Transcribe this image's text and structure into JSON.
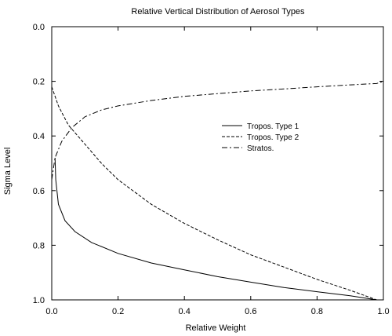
{
  "chart_data": {
    "type": "line",
    "title": "Relative Vertical Distribution of Aerosol Types",
    "xlabel": "Relative Weight",
    "ylabel": "Sigma Level",
    "xlim": [
      0.0,
      1.0
    ],
    "ylim": [
      1.0,
      0.0
    ],
    "y_inverted": true,
    "grid": false,
    "legend_position": "center-right",
    "x_ticks": [
      "0.0",
      "0.2",
      "0.4",
      "0.6",
      "0.8",
      "1.0"
    ],
    "y_ticks": [
      "0.0",
      "0.2",
      "0.4",
      "0.6",
      "0.8",
      "1.0"
    ],
    "series": [
      {
        "name": "Tropos. Type 1",
        "dash": "solid",
        "points": [
          [
            0.01,
            0.48
          ],
          [
            0.012,
            0.56
          ],
          [
            0.02,
            0.65
          ],
          [
            0.04,
            0.71
          ],
          [
            0.07,
            0.75
          ],
          [
            0.12,
            0.79
          ],
          [
            0.2,
            0.83
          ],
          [
            0.3,
            0.865
          ],
          [
            0.4,
            0.89
          ],
          [
            0.5,
            0.915
          ],
          [
            0.6,
            0.935
          ],
          [
            0.7,
            0.955
          ],
          [
            0.8,
            0.97
          ],
          [
            0.9,
            0.985
          ],
          [
            0.98,
            1.0
          ]
        ]
      },
      {
        "name": "Tropos. Type 2",
        "dash": "dashed",
        "points": [
          [
            0.0,
            0.22
          ],
          [
            0.02,
            0.29
          ],
          [
            0.05,
            0.36
          ],
          [
            0.1,
            0.43
          ],
          [
            0.15,
            0.5
          ],
          [
            0.2,
            0.56
          ],
          [
            0.3,
            0.65
          ],
          [
            0.4,
            0.72
          ],
          [
            0.5,
            0.78
          ],
          [
            0.6,
            0.835
          ],
          [
            0.7,
            0.88
          ],
          [
            0.8,
            0.925
          ],
          [
            0.9,
            0.965
          ],
          [
            0.98,
            1.0
          ]
        ]
      },
      {
        "name": "Stratos.",
        "dash": "dashdot",
        "points": [
          [
            0.0,
            0.56
          ],
          [
            0.01,
            0.48
          ],
          [
            0.03,
            0.42
          ],
          [
            0.06,
            0.37
          ],
          [
            0.1,
            0.33
          ],
          [
            0.15,
            0.305
          ],
          [
            0.2,
            0.29
          ],
          [
            0.3,
            0.27
          ],
          [
            0.4,
            0.255
          ],
          [
            0.5,
            0.245
          ],
          [
            0.6,
            0.235
          ],
          [
            0.7,
            0.228
          ],
          [
            0.8,
            0.22
          ],
          [
            0.9,
            0.213
          ],
          [
            0.98,
            0.208
          ],
          [
            1.0,
            0.2
          ],
          [
            1.0,
            0.0
          ]
        ]
      }
    ]
  }
}
